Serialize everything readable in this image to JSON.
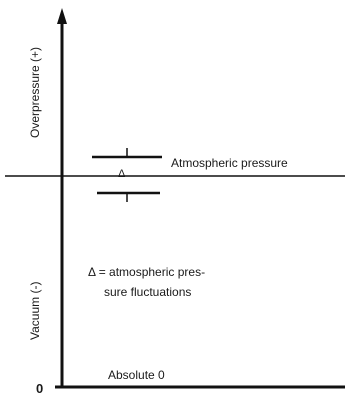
{
  "diagram": {
    "y_axis_upper_label": "Overpressure (+)",
    "y_axis_lower_label": "Vacuum (-)",
    "atmospheric_label": "Atmospheric pressure",
    "delta_symbol": "Δ",
    "fluctuation_label_line1": "Δ = atmospheric pres-",
    "fluctuation_label_line2": "sure fluctuations",
    "absolute_zero_label": "Absolute 0",
    "origin_label": "0",
    "colors": {
      "line": "#111111",
      "background": "#ffffff"
    }
  }
}
